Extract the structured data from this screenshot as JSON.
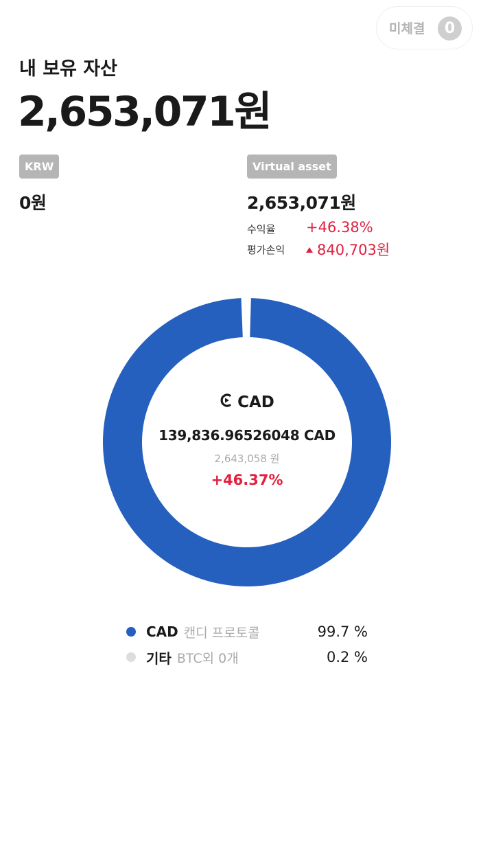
{
  "pending": {
    "label": "미체결",
    "count": "0"
  },
  "header": {
    "title": "내 보유 자산",
    "total": "2,653,071원"
  },
  "krw": {
    "tag": "KRW",
    "amount": "0원"
  },
  "virtual": {
    "tag": "Virtual asset",
    "amount": "2,653,071원",
    "return_label": "수익율",
    "return_value": "+46.38%",
    "pnl_label": "평가손익",
    "pnl_value": "840,703원"
  },
  "center": {
    "coin": "CAD",
    "quantity": "139,836.96526048 CAD",
    "krw_value": "2,643,058 원",
    "rate": "+46.37%"
  },
  "chart_data": {
    "type": "pie",
    "donut": true,
    "categories": [
      "CAD",
      "기타"
    ],
    "values": [
      99.7,
      0.2
    ],
    "colors": [
      "#2660be",
      "#dddddd"
    ]
  },
  "legend": [
    {
      "symbol": "CAD",
      "name": "캔디 프로토콜",
      "pct": "99.7 %",
      "color": "#2660be"
    },
    {
      "symbol": "기타",
      "name": "BTC외 0개",
      "pct": "0.2 %",
      "color": "#dddddd"
    }
  ],
  "colors": {
    "accent": "#2660be",
    "positive": "#e0213f",
    "tag": "#b5b5b5"
  }
}
